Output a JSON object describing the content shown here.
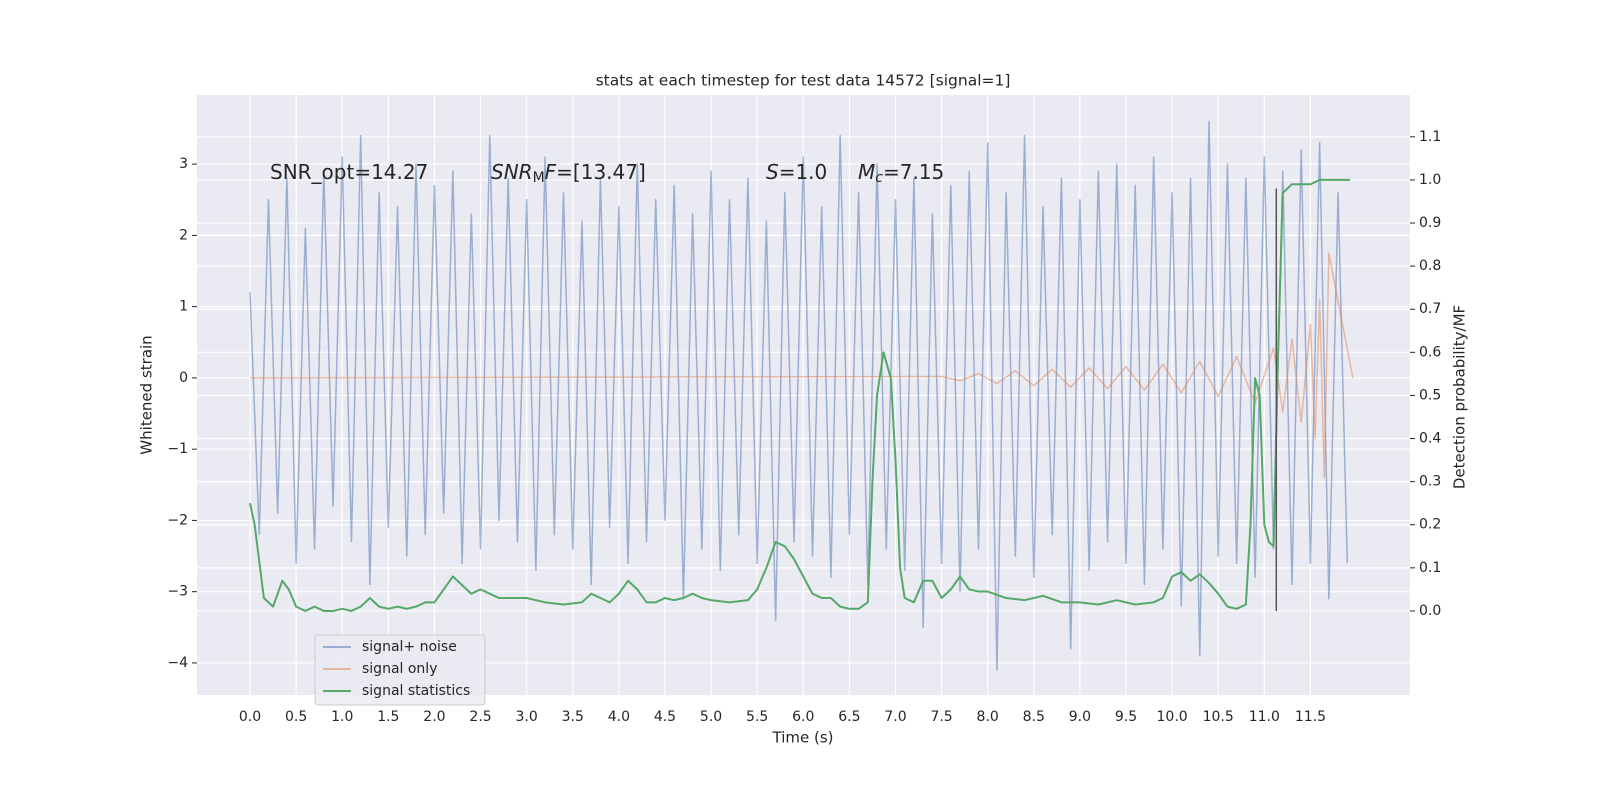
{
  "chart_data": {
    "type": "line",
    "title": "stats at each timestep for test data 14572 [signal=1]",
    "xlabel": "Time (s)",
    "ylabel": "Whitened strain",
    "y2label": "Detection probability/MF",
    "xlim": [
      -0.575,
      12.58
    ],
    "ylim": [
      -4.45,
      3.97
    ],
    "y2lim": [
      -0.195,
      1.197
    ],
    "xticks": [
      {
        "value": 0,
        "label": "0.0"
      },
      0.5,
      {
        "value": 1,
        "label": "1.0"
      },
      1.5,
      {
        "value": 2,
        "label": "2.0"
      },
      2.5,
      {
        "value": 3,
        "label": "3.0"
      },
      3.5,
      {
        "value": 4,
        "label": "4.0"
      },
      4.5,
      {
        "value": 5,
        "label": "5.0"
      },
      5.5,
      {
        "value": 6,
        "label": "6.0"
      },
      6.5,
      {
        "value": 7,
        "label": "7.0"
      },
      7.5,
      {
        "value": 8,
        "label": "8.0"
      },
      8.5,
      {
        "value": 9,
        "label": "9.0"
      },
      9.5,
      {
        "value": 10,
        "label": "10.0"
      },
      10.5,
      {
        "value": 11,
        "label": "11.0"
      },
      11.5
    ],
    "yticks": [
      {
        "value": -4,
        "label": "−4"
      },
      {
        "value": -3,
        "label": "−3"
      },
      {
        "value": -2,
        "label": "−2"
      },
      {
        "value": -1,
        "label": "−1"
      },
      0,
      1,
      2,
      3
    ],
    "y2ticks": [
      {
        "value": 0,
        "label": "0.0"
      },
      0.1,
      0.2,
      0.3,
      0.4,
      0.5,
      0.6,
      0.7,
      0.8,
      0.9,
      {
        "value": 1,
        "label": "1.0"
      },
      1.1
    ],
    "grid": true,
    "legend": "lower left",
    "annotations": [
      [
        "SNR_opt=14.27"
      ],
      [
        "SNR",
        "M",
        "F",
        "=[13.47]"
      ],
      [
        "S",
        "=1.0"
      ],
      [
        "M",
        "c",
        "=7.15"
      ]
    ],
    "threshold_line": {
      "x": 11.13,
      "y2": [
        0,
        0.98
      ],
      "color": "#555555"
    },
    "series": [
      {
        "name": "signal+ noise",
        "color": "#4c72b0",
        "x": [
          0,
          0.1,
          0.2,
          0.3,
          0.4,
          0.5,
          0.6,
          0.7,
          0.8,
          0.9,
          1.0,
          1.1,
          1.2,
          1.3,
          1.4,
          1.5,
          1.6,
          1.7,
          1.8,
          1.9,
          2.0,
          2.1,
          2.2,
          2.3,
          2.4,
          2.5,
          2.6,
          2.7,
          2.8,
          2.9,
          3.0,
          3.1,
          3.2,
          3.3,
          3.4,
          3.5,
          3.6,
          3.7,
          3.8,
          3.9,
          4.0,
          4.1,
          4.2,
          4.3,
          4.4,
          4.5,
          4.6,
          4.7,
          4.8,
          4.9,
          5.0,
          5.1,
          5.2,
          5.3,
          5.4,
          5.5,
          5.6,
          5.7,
          5.8,
          5.9,
          6.0,
          6.1,
          6.2,
          6.3,
          6.4,
          6.5,
          6.6,
          6.7,
          6.8,
          6.9,
          7.0,
          7.1,
          7.2,
          7.3,
          7.4,
          7.5,
          7.6,
          7.7,
          7.8,
          7.9,
          8.0,
          8.1,
          8.2,
          8.3,
          8.4,
          8.5,
          8.6,
          8.7,
          8.8,
          8.9,
          9.0,
          9.1,
          9.2,
          9.3,
          9.4,
          9.5,
          9.6,
          9.7,
          9.8,
          9.9,
          10.0,
          10.1,
          10.2,
          10.3,
          10.4,
          10.5,
          10.6,
          10.7,
          10.8,
          10.9,
          11.0,
          11.1,
          11.2,
          11.3,
          11.4,
          11.5,
          11.6,
          11.7,
          11.8,
          11.9
        ],
        "values": [
          1.2,
          -2.2,
          2.5,
          -1.9,
          2.8,
          -2.6,
          2.1,
          -2.4,
          2.9,
          -1.8,
          3.1,
          -2.3,
          3.4,
          -2.9,
          2.6,
          -2.1,
          2.4,
          -2.5,
          3.0,
          -2.2,
          2.7,
          -1.9,
          2.9,
          -2.6,
          2.3,
          -2.4,
          3.4,
          -2.0,
          2.8,
          -2.3,
          2.5,
          -2.7,
          3.1,
          -2.2,
          2.6,
          -2.4,
          2.2,
          -2.9,
          2.8,
          -2.1,
          2.4,
          -2.6,
          3.0,
          -2.3,
          2.5,
          -2.0,
          2.7,
          -3.1,
          2.3,
          -2.4,
          2.9,
          -2.7,
          2.5,
          -2.2,
          2.8,
          -2.6,
          2.2,
          -3.4,
          2.6,
          -2.3,
          3.1,
          -2.5,
          2.4,
          -2.8,
          3.4,
          -2.2,
          2.6,
          -2.9,
          3.0,
          -2.4,
          2.5,
          -2.7,
          2.8,
          -3.5,
          2.3,
          -2.6,
          2.7,
          -3.0,
          2.9,
          -2.4,
          3.3,
          -4.1,
          2.6,
          -2.5,
          3.4,
          -2.8,
          2.4,
          -2.2,
          2.8,
          -3.8,
          2.5,
          -2.7,
          2.9,
          -2.3,
          3.0,
          -2.6,
          2.7,
          -2.9,
          3.1,
          -2.4,
          2.6,
          -3.2,
          2.8,
          -3.9,
          3.6,
          -2.5,
          3.0,
          -2.6,
          2.8,
          -2.8,
          3.1,
          -2.4,
          2.9,
          -2.9,
          3.2,
          -2.6,
          3.3,
          -3.1,
          2.6,
          -2.6
        ]
      },
      {
        "name": "signal only",
        "color": "#dd8452",
        "x": [
          0,
          7.5,
          7.7,
          7.9,
          8.1,
          8.3,
          8.5,
          8.7,
          8.9,
          9.1,
          9.3,
          9.5,
          9.7,
          9.9,
          10.1,
          10.3,
          10.5,
          10.7,
          10.9,
          11.1,
          11.2,
          11.3,
          11.4,
          11.5,
          11.55,
          11.6,
          11.65,
          11.7,
          11.96
        ],
        "values": [
          0,
          0.02,
          -0.04,
          0.06,
          -0.08,
          0.1,
          -0.11,
          0.12,
          -0.13,
          0.14,
          -0.15,
          0.16,
          -0.17,
          0.19,
          -0.21,
          0.23,
          -0.26,
          0.3,
          -0.35,
          0.42,
          -0.48,
          0.55,
          -0.62,
          0.75,
          -0.85,
          1.1,
          -1.4,
          1.75,
          0
        ]
      },
      {
        "name": "signal statistics",
        "color": "#55a868",
        "axis": "y2",
        "x": [
          0,
          0.05,
          0.15,
          0.25,
          0.35,
          0.42,
          0.5,
          0.6,
          0.7,
          0.8,
          0.9,
          1.0,
          1.1,
          1.2,
          1.3,
          1.4,
          1.5,
          1.6,
          1.7,
          1.8,
          1.9,
          2.0,
          2.1,
          2.2,
          2.3,
          2.4,
          2.5,
          2.6,
          2.7,
          2.8,
          3.0,
          3.2,
          3.4,
          3.6,
          3.7,
          3.8,
          3.9,
          4.0,
          4.1,
          4.2,
          4.3,
          4.4,
          4.5,
          4.6,
          4.7,
          4.8,
          4.9,
          5.0,
          5.2,
          5.4,
          5.5,
          5.6,
          5.7,
          5.8,
          5.9,
          6.0,
          6.1,
          6.2,
          6.3,
          6.4,
          6.5,
          6.6,
          6.7,
          6.75,
          6.8,
          6.87,
          6.95,
          7.0,
          7.05,
          7.1,
          7.2,
          7.3,
          7.4,
          7.5,
          7.6,
          7.7,
          7.8,
          7.9,
          8.0,
          8.2,
          8.4,
          8.6,
          8.8,
          9.0,
          9.2,
          9.4,
          9.6,
          9.8,
          9.9,
          10.0,
          10.1,
          10.2,
          10.3,
          10.4,
          10.5,
          10.6,
          10.7,
          10.8,
          10.85,
          10.9,
          10.95,
          11.0,
          11.05,
          11.1,
          11.15,
          11.2,
          11.3,
          11.4,
          11.5,
          11.6,
          11.7,
          11.8,
          11.93
        ],
        "values": [
          0.25,
          0.2,
          0.03,
          0.01,
          0.07,
          0.05,
          0.01,
          0,
          0.01,
          0,
          0,
          0.005,
          0,
          0.01,
          0.03,
          0.01,
          0.005,
          0.01,
          0.005,
          0.01,
          0.02,
          0.02,
          0.05,
          0.08,
          0.06,
          0.04,
          0.05,
          0.04,
          0.03,
          0.03,
          0.03,
          0.02,
          0.015,
          0.02,
          0.04,
          0.03,
          0.02,
          0.04,
          0.07,
          0.05,
          0.02,
          0.02,
          0.03,
          0.025,
          0.03,
          0.04,
          0.03,
          0.025,
          0.02,
          0.025,
          0.05,
          0.1,
          0.16,
          0.15,
          0.12,
          0.08,
          0.04,
          0.03,
          0.03,
          0.01,
          0.005,
          0.005,
          0.02,
          0.3,
          0.5,
          0.6,
          0.54,
          0.35,
          0.1,
          0.03,
          0.02,
          0.07,
          0.07,
          0.03,
          0.05,
          0.08,
          0.05,
          0.045,
          0.045,
          0.03,
          0.025,
          0.035,
          0.02,
          0.02,
          0.015,
          0.025,
          0.015,
          0.02,
          0.03,
          0.08,
          0.09,
          0.07,
          0.085,
          0.065,
          0.04,
          0.01,
          0.005,
          0.015,
          0.2,
          0.54,
          0.5,
          0.2,
          0.16,
          0.15,
          0.6,
          0.97,
          0.99,
          0.99,
          0.99,
          1.0,
          1.0,
          1.0,
          1.0
        ]
      }
    ]
  }
}
